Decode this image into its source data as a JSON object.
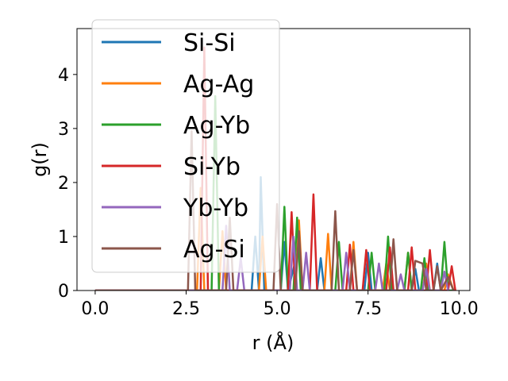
{
  "chart_data": {
    "type": "line",
    "title": "",
    "xlabel": "r (Å)",
    "ylabel": "g(r)",
    "xlim": [
      -0.5,
      10.3
    ],
    "ylim": [
      0,
      4.85
    ],
    "xticks": [
      0.0,
      2.5,
      5.0,
      7.5,
      10.0
    ],
    "xtick_labels": [
      "0.0",
      "2.5",
      "5.0",
      "7.5",
      "10.0"
    ],
    "yticks": [
      0,
      1,
      2,
      3,
      4
    ],
    "ytick_labels": [
      "0",
      "1",
      "2",
      "3",
      "4"
    ],
    "grid": false,
    "legend_position": "upper-left",
    "series": [
      {
        "name": "Si-Si",
        "color": "#1f77b4",
        "points": [
          [
            0,
            0
          ],
          [
            4.3,
            0
          ],
          [
            4.4,
            1.0
          ],
          [
            4.5,
            0
          ],
          [
            4.55,
            2.1
          ],
          [
            4.65,
            0
          ],
          [
            5.1,
            0
          ],
          [
            5.2,
            0.9
          ],
          [
            5.3,
            0
          ],
          [
            5.6,
            0.8
          ],
          [
            5.7,
            0
          ],
          [
            6.1,
            0
          ],
          [
            6.2,
            0.6
          ],
          [
            6.3,
            0
          ],
          [
            7.4,
            0
          ],
          [
            7.5,
            0.7
          ],
          [
            7.6,
            0
          ],
          [
            8.7,
            0
          ],
          [
            8.8,
            0.4
          ],
          [
            8.9,
            0
          ],
          [
            9.3,
            0
          ],
          [
            9.4,
            0.5
          ],
          [
            9.5,
            0
          ],
          [
            9.9,
            0
          ]
        ]
      },
      {
        "name": "Ag-Ag",
        "color": "#ff7f0e",
        "points": [
          [
            0,
            0
          ],
          [
            2.8,
            0
          ],
          [
            2.9,
            1.9
          ],
          [
            3.0,
            0
          ],
          [
            3.4,
            0
          ],
          [
            3.5,
            1.1
          ],
          [
            3.6,
            0
          ],
          [
            4.5,
            0
          ],
          [
            4.6,
            1.0
          ],
          [
            4.7,
            0
          ],
          [
            5.5,
            0
          ],
          [
            5.6,
            1.3
          ],
          [
            5.7,
            0
          ],
          [
            6.3,
            0
          ],
          [
            6.4,
            1.05
          ],
          [
            6.5,
            0
          ],
          [
            7.0,
            0
          ],
          [
            7.1,
            0.9
          ],
          [
            7.2,
            0
          ],
          [
            7.9,
            0
          ],
          [
            8.0,
            0.5
          ],
          [
            8.1,
            0
          ],
          [
            8.5,
            0
          ],
          [
            8.6,
            0.7
          ],
          [
            8.7,
            0
          ],
          [
            9.0,
            0
          ],
          [
            9.1,
            0.5
          ],
          [
            9.2,
            0
          ],
          [
            9.6,
            0
          ],
          [
            9.7,
            0.3
          ],
          [
            9.85,
            0
          ]
        ]
      },
      {
        "name": "Ag-Yb",
        "color": "#2ca02c",
        "points": [
          [
            0,
            0
          ],
          [
            3.2,
            0
          ],
          [
            3.3,
            3.6
          ],
          [
            3.4,
            0
          ],
          [
            5.1,
            0
          ],
          [
            5.2,
            1.55
          ],
          [
            5.3,
            0
          ],
          [
            5.45,
            0
          ],
          [
            5.55,
            1.35
          ],
          [
            5.65,
            0
          ],
          [
            6.6,
            0
          ],
          [
            6.7,
            0.9
          ],
          [
            6.8,
            0
          ],
          [
            7.5,
            0
          ],
          [
            7.6,
            0.7
          ],
          [
            7.7,
            0
          ],
          [
            7.95,
            0
          ],
          [
            8.05,
            1.0
          ],
          [
            8.15,
            0
          ],
          [
            8.5,
            0
          ],
          [
            8.6,
            0.7
          ],
          [
            8.7,
            0
          ],
          [
            8.95,
            0
          ],
          [
            9.05,
            0.6
          ],
          [
            9.15,
            0
          ],
          [
            9.5,
            0
          ],
          [
            9.6,
            0.9
          ],
          [
            9.7,
            0
          ],
          [
            9.9,
            0
          ]
        ]
      },
      {
        "name": "Si-Yb",
        "color": "#d62728",
        "points": [
          [
            0,
            0
          ],
          [
            2.9,
            0
          ],
          [
            3.0,
            4.5
          ],
          [
            3.1,
            0
          ],
          [
            5.3,
            0
          ],
          [
            5.4,
            1.45
          ],
          [
            5.5,
            0
          ],
          [
            5.9,
            0
          ],
          [
            6.0,
            1.78
          ],
          [
            6.1,
            0
          ],
          [
            6.9,
            0
          ],
          [
            7.0,
            0.85
          ],
          [
            7.1,
            0
          ],
          [
            7.35,
            0
          ],
          [
            7.45,
            0.75
          ],
          [
            7.55,
            0
          ],
          [
            8.0,
            0
          ],
          [
            8.1,
            0.8
          ],
          [
            8.2,
            0
          ],
          [
            8.6,
            0
          ],
          [
            8.7,
            0.8
          ],
          [
            8.8,
            0
          ],
          [
            9.1,
            0
          ],
          [
            9.2,
            0.75
          ],
          [
            9.3,
            0
          ],
          [
            9.7,
            0
          ],
          [
            9.8,
            0.45
          ],
          [
            9.9,
            0
          ]
        ]
      },
      {
        "name": "Yb-Yb",
        "color": "#9467bd",
        "points": [
          [
            0,
            0
          ],
          [
            3.5,
            0
          ],
          [
            3.6,
            1.2
          ],
          [
            3.7,
            0
          ],
          [
            3.9,
            0
          ],
          [
            4.0,
            0.6
          ],
          [
            4.1,
            0
          ],
          [
            5.35,
            0
          ],
          [
            5.45,
            1.0
          ],
          [
            5.55,
            0
          ],
          [
            5.7,
            0
          ],
          [
            5.8,
            0.7
          ],
          [
            5.9,
            0
          ],
          [
            6.8,
            0
          ],
          [
            6.9,
            0.7
          ],
          [
            7.0,
            0
          ],
          [
            7.7,
            0
          ],
          [
            7.8,
            0.5
          ],
          [
            7.9,
            0
          ],
          [
            8.3,
            0
          ],
          [
            8.4,
            0.3
          ],
          [
            8.5,
            0
          ],
          [
            9.0,
            0
          ],
          [
            9.1,
            0.4
          ],
          [
            9.2,
            0
          ],
          [
            9.5,
            0
          ],
          [
            9.6,
            0.35
          ],
          [
            9.7,
            0
          ]
        ]
      },
      {
        "name": "Ag-Si",
        "color": "#8c564b",
        "points": [
          [
            0,
            0
          ],
          [
            2.55,
            0
          ],
          [
            2.65,
            2.95
          ],
          [
            2.75,
            0
          ],
          [
            3.6,
            0
          ],
          [
            3.7,
            1.35
          ],
          [
            3.8,
            0
          ],
          [
            4.9,
            0
          ],
          [
            5.0,
            1.6
          ],
          [
            5.1,
            0
          ],
          [
            5.5,
            0
          ],
          [
            5.6,
            1.1
          ],
          [
            5.7,
            0
          ],
          [
            6.5,
            0
          ],
          [
            6.6,
            1.47
          ],
          [
            6.7,
            0
          ],
          [
            7.0,
            0
          ],
          [
            7.1,
            0.75
          ],
          [
            7.2,
            0
          ],
          [
            8.1,
            0
          ],
          [
            8.2,
            0.95
          ],
          [
            8.3,
            0
          ],
          [
            8.7,
            0
          ],
          [
            8.8,
            0.55
          ],
          [
            9.0,
            0.5
          ],
          [
            9.1,
            0
          ],
          [
            9.3,
            0
          ],
          [
            9.4,
            0.45
          ],
          [
            9.5,
            0
          ],
          [
            9.7,
            0.25
          ],
          [
            9.85,
            0
          ]
        ]
      }
    ]
  }
}
